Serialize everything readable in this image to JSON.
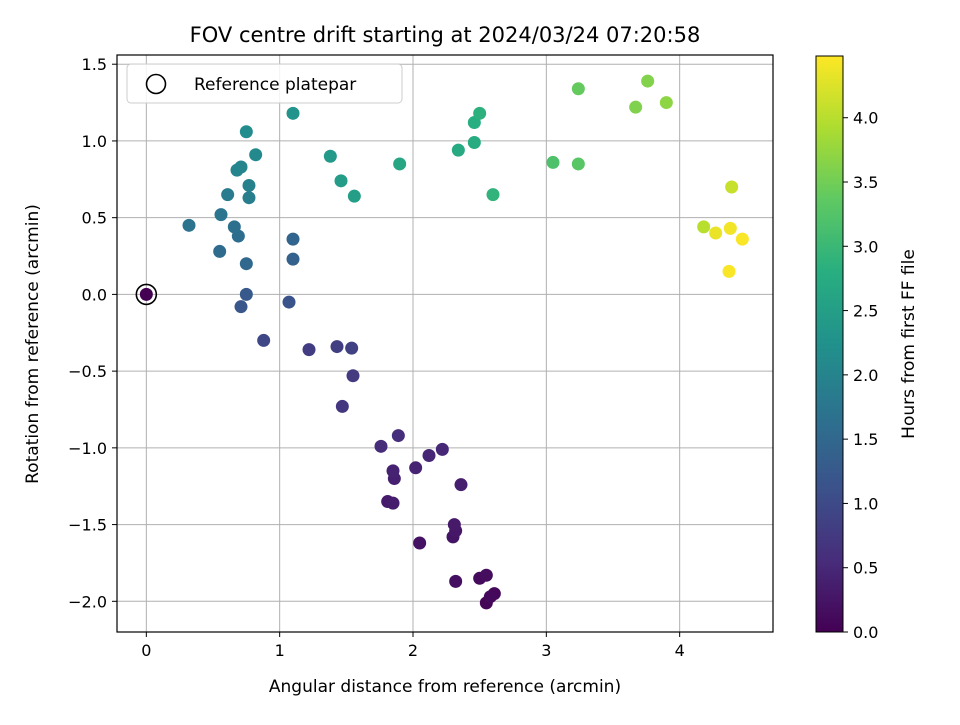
{
  "chart_data": {
    "type": "scatter",
    "title": "FOV centre drift starting at 2024/03/24 07:20:58",
    "xlabel": "Angular distance from reference (arcmin)",
    "ylabel": "Rotation from reference (arcmin)",
    "xlim": [
      -0.22,
      4.7
    ],
    "ylim": [
      -2.2,
      1.56
    ],
    "xticks": [
      0,
      1,
      2,
      3,
      4
    ],
    "xtick_labels": [
      "0",
      "1",
      "2",
      "3",
      "4"
    ],
    "yticks": [
      -2.0,
      -1.5,
      -1.0,
      -0.5,
      0.0,
      0.5,
      1.0,
      1.5
    ],
    "ytick_labels": [
      "−2.0",
      "−1.5",
      "−1.0",
      "−0.5",
      "0.0",
      "0.5",
      "1.0",
      "1.5"
    ],
    "grid": true,
    "legend": {
      "position": "top-left",
      "entries": [
        "Reference platepar"
      ]
    },
    "reference_point": {
      "x": 0,
      "y": 0
    },
    "colorbar": {
      "label": "Hours from first FF file",
      "colormap": "viridis",
      "range": [
        0,
        4.48
      ],
      "ticks": [
        0.0,
        0.5,
        1.0,
        1.5,
        2.0,
        2.5,
        3.0,
        3.5,
        4.0
      ],
      "tick_labels": [
        "0.0",
        "0.5",
        "1.0",
        "1.5",
        "2.0",
        "2.5",
        "3.0",
        "3.5",
        "4.0"
      ]
    },
    "points": [
      {
        "x": 0.0,
        "y": 0.0,
        "c": 0.0
      },
      {
        "x": 2.55,
        "y": -2.01,
        "c": 0.05
      },
      {
        "x": 2.61,
        "y": -1.95,
        "c": 0.08
      },
      {
        "x": 2.58,
        "y": -1.97,
        "c": 0.1
      },
      {
        "x": 2.5,
        "y": -1.85,
        "c": 0.12
      },
      {
        "x": 2.55,
        "y": -1.83,
        "c": 0.15
      },
      {
        "x": 2.32,
        "y": -1.87,
        "c": 0.18
      },
      {
        "x": 2.05,
        "y": -1.62,
        "c": 0.22
      },
      {
        "x": 2.3,
        "y": -1.58,
        "c": 0.25
      },
      {
        "x": 2.32,
        "y": -1.54,
        "c": 0.28
      },
      {
        "x": 2.31,
        "y": -1.5,
        "c": 0.3
      },
      {
        "x": 1.81,
        "y": -1.35,
        "c": 0.33
      },
      {
        "x": 1.85,
        "y": -1.36,
        "c": 0.36
      },
      {
        "x": 2.36,
        "y": -1.24,
        "c": 0.38
      },
      {
        "x": 1.86,
        "y": -1.2,
        "c": 0.4
      },
      {
        "x": 1.85,
        "y": -1.15,
        "c": 0.43
      },
      {
        "x": 2.02,
        "y": -1.13,
        "c": 0.45
      },
      {
        "x": 2.12,
        "y": -1.05,
        "c": 0.48
      },
      {
        "x": 2.22,
        "y": -1.01,
        "c": 0.5
      },
      {
        "x": 1.76,
        "y": -0.99,
        "c": 0.55
      },
      {
        "x": 1.89,
        "y": -0.92,
        "c": 0.58
      },
      {
        "x": 1.47,
        "y": -0.73,
        "c": 0.7
      },
      {
        "x": 1.55,
        "y": -0.53,
        "c": 0.75
      },
      {
        "x": 1.22,
        "y": -0.36,
        "c": 0.8
      },
      {
        "x": 1.43,
        "y": -0.34,
        "c": 0.82
      },
      {
        "x": 1.54,
        "y": -0.35,
        "c": 0.85
      },
      {
        "x": 0.88,
        "y": -0.3,
        "c": 0.95
      },
      {
        "x": 0.71,
        "y": -0.08,
        "c": 1.2
      },
      {
        "x": 0.75,
        "y": 0.0,
        "c": 1.25
      },
      {
        "x": 1.07,
        "y": -0.05,
        "c": 1.15
      },
      {
        "x": 1.1,
        "y": 0.23,
        "c": 1.4
      },
      {
        "x": 1.1,
        "y": 0.36,
        "c": 1.45
      },
      {
        "x": 0.75,
        "y": 0.2,
        "c": 1.5
      },
      {
        "x": 0.55,
        "y": 0.28,
        "c": 1.55
      },
      {
        "x": 0.69,
        "y": 0.38,
        "c": 1.6
      },
      {
        "x": 0.66,
        "y": 0.44,
        "c": 1.65
      },
      {
        "x": 0.32,
        "y": 0.45,
        "c": 1.7
      },
      {
        "x": 0.56,
        "y": 0.52,
        "c": 1.75
      },
      {
        "x": 0.61,
        "y": 0.65,
        "c": 1.85
      },
      {
        "x": 0.77,
        "y": 0.63,
        "c": 1.9
      },
      {
        "x": 0.77,
        "y": 0.71,
        "c": 1.95
      },
      {
        "x": 0.68,
        "y": 0.81,
        "c": 2.0
      },
      {
        "x": 0.71,
        "y": 0.83,
        "c": 2.02
      },
      {
        "x": 0.82,
        "y": 0.91,
        "c": 2.1
      },
      {
        "x": 0.75,
        "y": 1.06,
        "c": 2.15
      },
      {
        "x": 1.1,
        "y": 1.18,
        "c": 2.3
      },
      {
        "x": 1.38,
        "y": 0.9,
        "c": 2.4
      },
      {
        "x": 1.46,
        "y": 0.74,
        "c": 2.45
      },
      {
        "x": 1.56,
        "y": 0.64,
        "c": 2.5
      },
      {
        "x": 1.9,
        "y": 0.85,
        "c": 2.65
      },
      {
        "x": 2.34,
        "y": 0.94,
        "c": 2.7
      },
      {
        "x": 2.46,
        "y": 0.99,
        "c": 2.75
      },
      {
        "x": 2.46,
        "y": 1.12,
        "c": 2.8
      },
      {
        "x": 2.5,
        "y": 1.18,
        "c": 2.85
      },
      {
        "x": 2.6,
        "y": 0.65,
        "c": 2.9
      },
      {
        "x": 3.05,
        "y": 0.86,
        "c": 3.2
      },
      {
        "x": 3.24,
        "y": 0.85,
        "c": 3.3
      },
      {
        "x": 3.24,
        "y": 1.34,
        "c": 3.4
      },
      {
        "x": 3.67,
        "y": 1.22,
        "c": 3.6
      },
      {
        "x": 3.76,
        "y": 1.39,
        "c": 3.62
      },
      {
        "x": 3.9,
        "y": 1.25,
        "c": 3.7
      },
      {
        "x": 4.18,
        "y": 0.44,
        "c": 4.0
      },
      {
        "x": 4.39,
        "y": 0.7,
        "c": 4.1
      },
      {
        "x": 4.27,
        "y": 0.4,
        "c": 4.35
      },
      {
        "x": 4.38,
        "y": 0.43,
        "c": 4.4
      },
      {
        "x": 4.47,
        "y": 0.36,
        "c": 4.45
      },
      {
        "x": 4.37,
        "y": 0.15,
        "c": 4.45
      }
    ]
  }
}
